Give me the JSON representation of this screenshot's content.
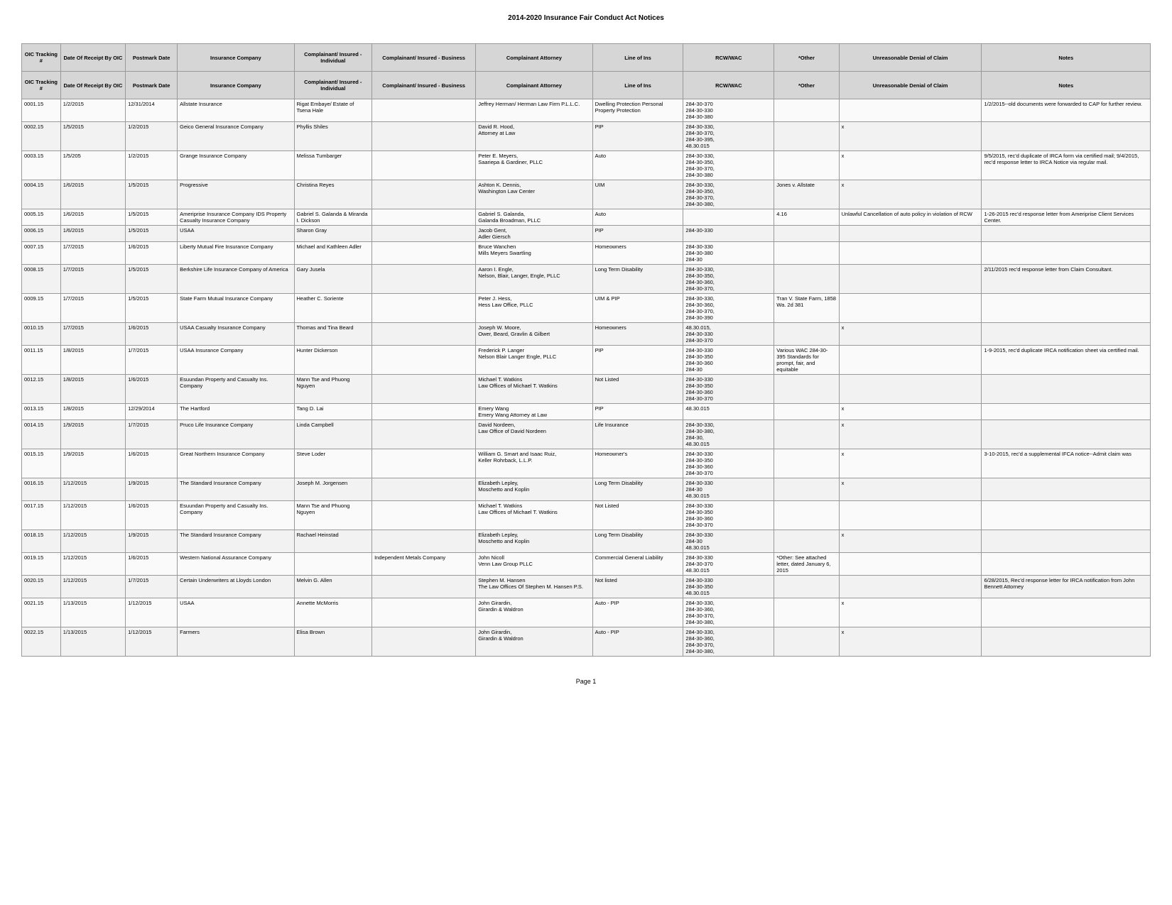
{
  "title": "2014-2020 Insurance Fair Conduct Act Notices",
  "page": "Page 1",
  "headers": [
    "OIC Tracking #",
    "Date Of Receipt By OIC",
    "Postmark Date",
    "Insurance Company",
    "Complainant/ Insured - Individual",
    "Complainant/ Insured - Business",
    "Complainant Attorney",
    "Line of Ins",
    "RCW/WAC",
    "*Other",
    "Unreasonable Denial of Claim",
    "Notes"
  ],
  "rows": [
    [
      "0001.15",
      "1/2/2015",
      "12/31/2014",
      "Allstate Insurance",
      "Rigat Embaye/ Estate of Tsena Hale",
      "",
      "Jeffrey Herman/ Herman Law Firm P.L.L.C.",
      "Dwelling Protection Personal Property Protection",
      "284-30-370\n284-30-330\n284-30-380",
      "",
      "",
      "1/2/2015--old documents were forwarded to CAP for further review."
    ],
    [
      "0002.15",
      "1/5/2015",
      "1/2/2015",
      "Geico General Insurance Company",
      "Phyllis Shiles",
      "",
      "David R. Hood,\nAttorney at Law",
      "PIP",
      "284-30-330,\n284-30-370,\n284-30-395,\n48.30.015",
      "",
      "x",
      ""
    ],
    [
      "0003.15",
      "1/5/205",
      "1/2/2015",
      "Grange Insurance Company",
      "Melissa Tumbarger",
      "",
      "Peter E. Meyers,\nSaariepa & Gardiner, PLLC",
      "Auto",
      "284-30-330,\n284-30-350,\n284-30-370,\n284-30-380",
      "",
      "x",
      "9/5/2015, rec'd duplicate of IRCA form via certified mail; 9/4/2015, rec'd response letter to IRCA Notice via regular mail."
    ],
    [
      "0004.15",
      "1/6/2015",
      "1/5/2015",
      "Progressive",
      "Christina Reyes",
      "",
      "Ashton K. Dennis,\nWashington Law Center",
      "UIM",
      "284-30-330,\n284-30-350,\n284-30-370,\n284-30-380,",
      "Jones v. Allstate",
      "x",
      ""
    ],
    [
      "0005.15",
      "1/6/2015",
      "1/5/2015",
      "Ameriprise Insurance Company IDS Property Casualty Insurance Company",
      "Gabriel S. Galanda & Miranda I. Dickson",
      "",
      "Gabriel S. Galanda,\nGalanda Broadman, PLLC",
      "Auto",
      "",
      "4.16",
      "Unlawful Cancellation of auto policy in violation of RCW",
      "1-26-2015 rec'd response letter from Ameriprise Client Services Center."
    ],
    [
      "0006.15",
      "1/6/2015",
      "1/5/2015",
      "USAA",
      "Sharon Gray",
      "",
      "Jacob Gent,\nAdler Giersch",
      "PIP",
      "284-30-330",
      "",
      "",
      ""
    ],
    [
      "0007.15",
      "1/7/2015",
      "1/6/2015",
      "Liberty Mutual Fire Insurance Company",
      "Michael and Kathleen Adler",
      "",
      "Bruce Wanchen\nMills Meyers Swartling",
      "Homeowners",
      "284-30-330\n284-30-380\n284-30",
      "",
      "",
      ""
    ],
    [
      "0008.15",
      "1/7/2015",
      "1/5/2015",
      "Berkshire Life Insurance Company of America",
      "Gary Jusela",
      "",
      "Aaron I. Engle,\nNelson, Blair, Langer, Engle, PLLC",
      "Long Term Disability",
      "284-30-330,\n284-30-350,\n284-30-360,\n284-30-370,",
      "",
      "",
      "2/11/2015 rec'd response letter from Claim Consultant."
    ],
    [
      "0009.15",
      "1/7/2015",
      "1/5/2015",
      "State Farm Mutual Insurance Company",
      "Heather C. Soriente",
      "",
      "Peter J. Hess,\nHess Law Office, PLLC",
      "UIM & PIP",
      "284-30-330,\n284-30-360,\n284-30-370,\n284-30-390",
      "Tran V. State Farm, 1858 Wa. 2d 381",
      "",
      ""
    ],
    [
      "0010.15",
      "1/7/2015",
      "1/6/2015",
      "USAA Casualty Insurance Company",
      "Thomas and Tina Beard",
      "",
      "Joseph W. Moore,\nOwer, Beard, Gravlin & Gilbert",
      "Homeowners",
      "48.30.015,\n284-30-330\n284-30-370",
      "",
      "x",
      ""
    ],
    [
      "0011.15",
      "1/8/2015",
      "1/7/2015",
      "USAA Insurance Company",
      "Hunter Dickerson",
      "",
      "Frederick P. Langer\nNelson Blair Langer Engle, PLLC",
      "PIP",
      "284-30-330\n284-30-350\n284-30-360\n284-30",
      "Various WAC 284-30-395 Standards for prompt, fair, and equitable",
      "",
      "1-9-2015, rec'd duplicate IRCA notification sheet via certified mail."
    ],
    [
      "0012.15",
      "1/8/2015",
      "1/6/2015",
      "Esuundan Property and Casualty Ins. Company",
      "Mann Tse and Phuong Nguyen",
      "",
      "Michael T. Watkins\nLaw Offices of Michael T. Watkins",
      "Not Listed",
      "284-30-330\n284-30-350\n284-30-360\n284-30-370",
      "",
      "",
      ""
    ],
    [
      "0013.15",
      "1/8/2015",
      "12/29/2014",
      "The Hartford",
      "Tang D. Lai",
      "",
      "Emery Wang\nEmery Wang Attorney at Law",
      "PIP",
      "48.30.015",
      "",
      "x",
      ""
    ],
    [
      "0014.15",
      "1/9/2015",
      "1/7/2015",
      "Pruco Life Insurance Company",
      "Linda Campbell",
      "",
      "David Nordeen,\nLaw Office of David Nordeen",
      "Life Insurance",
      "284-30-330,\n284-30-380,\n284-30,\n48.30.015",
      "",
      "x",
      ""
    ],
    [
      "0015.15",
      "1/9/2015",
      "1/6/2015",
      "Great Northern Insurance Company",
      "Steve Loder",
      "",
      "William G. Smart and Isaac Ruiz,\nKeller Rohrback, L.L.P.",
      "Homeowner's",
      "284-30-330\n284-30-350\n284-30-360\n284-30-370",
      "",
      "x",
      "3-10-2015, rec'd a supplemental IFCA notice--Admit claim was"
    ],
    [
      "0016.15",
      "1/12/2015",
      "1/9/2015",
      "The Standard Insurance Company",
      "Joseph M. Jorgensen",
      "",
      "Elizabeth Lepley,\nMoschetto and Koplin",
      "Long Term Disability",
      "284-30-330\n284-30\n48.30.015",
      "",
      "x",
      ""
    ],
    [
      "0017.15",
      "1/12/2015",
      "1/6/2015",
      "Esuundan Property and Casualty Ins. Company",
      "Mann Tse and Phuong Nguyen",
      "",
      "Michael T. Watkins\nLaw Offices of Michael T. Watkins",
      "Not Listed",
      "284-30-330\n284-30-350\n284-30-360\n284-30-370",
      "",
      "",
      ""
    ],
    [
      "0018.15",
      "1/12/2015",
      "1/9/2015",
      "The Standard Insurance Company",
      "Rachael Heinstad",
      "",
      "Elizabeth Lepley,\nMoschetto and Koplin",
      "Long Term Disability",
      "284-30-330\n284-30\n48.30.015",
      "",
      "x",
      ""
    ],
    [
      "0019.15",
      "1/12/2015",
      "1/6/2015",
      "Western National Assurance Company",
      "",
      "Independent Metals Company",
      "John Nicoll\nVenn Law Group PLLC",
      "Commercial General Liability",
      "284-30-330\n284-30-370\n48.30.015",
      "*Other: See attached letter, dated January 6, 2015",
      "",
      ""
    ],
    [
      "0020.15",
      "1/12/2015",
      "1/7/2015",
      "Certain Underwriters at Lloyds London",
      "Melvin G. Allen",
      "",
      "Stephen M. Hansen\nThe Law Offices Of Stephen M. Hansen P.S.",
      "Not listed",
      "284-30-330\n284-30-350\n48.30.015",
      "",
      "",
      "6/28/2015, Rec'd response letter for IRCA notification from John Bennett Attorney"
    ],
    [
      "0021.15",
      "1/13/2015",
      "1/12/2015",
      "USAA",
      "Annette McMorris",
      "",
      "John Girardin,\nGirardin & Waldron",
      "Auto - PIP",
      "284-30-330,\n284-30-360,\n284-30-370,\n284-30-380,",
      "",
      "x",
      ""
    ],
    [
      "0022.15",
      "1/13/2015",
      "1/12/2015",
      "Farmers",
      "Elisa Brown",
      "",
      "John Girardin,\nGirardin & Waldron",
      "Auto - PIP",
      "284-30-330,\n284-30-360,\n284-30-370,\n284-30-380,",
      "",
      "x",
      ""
    ]
  ]
}
